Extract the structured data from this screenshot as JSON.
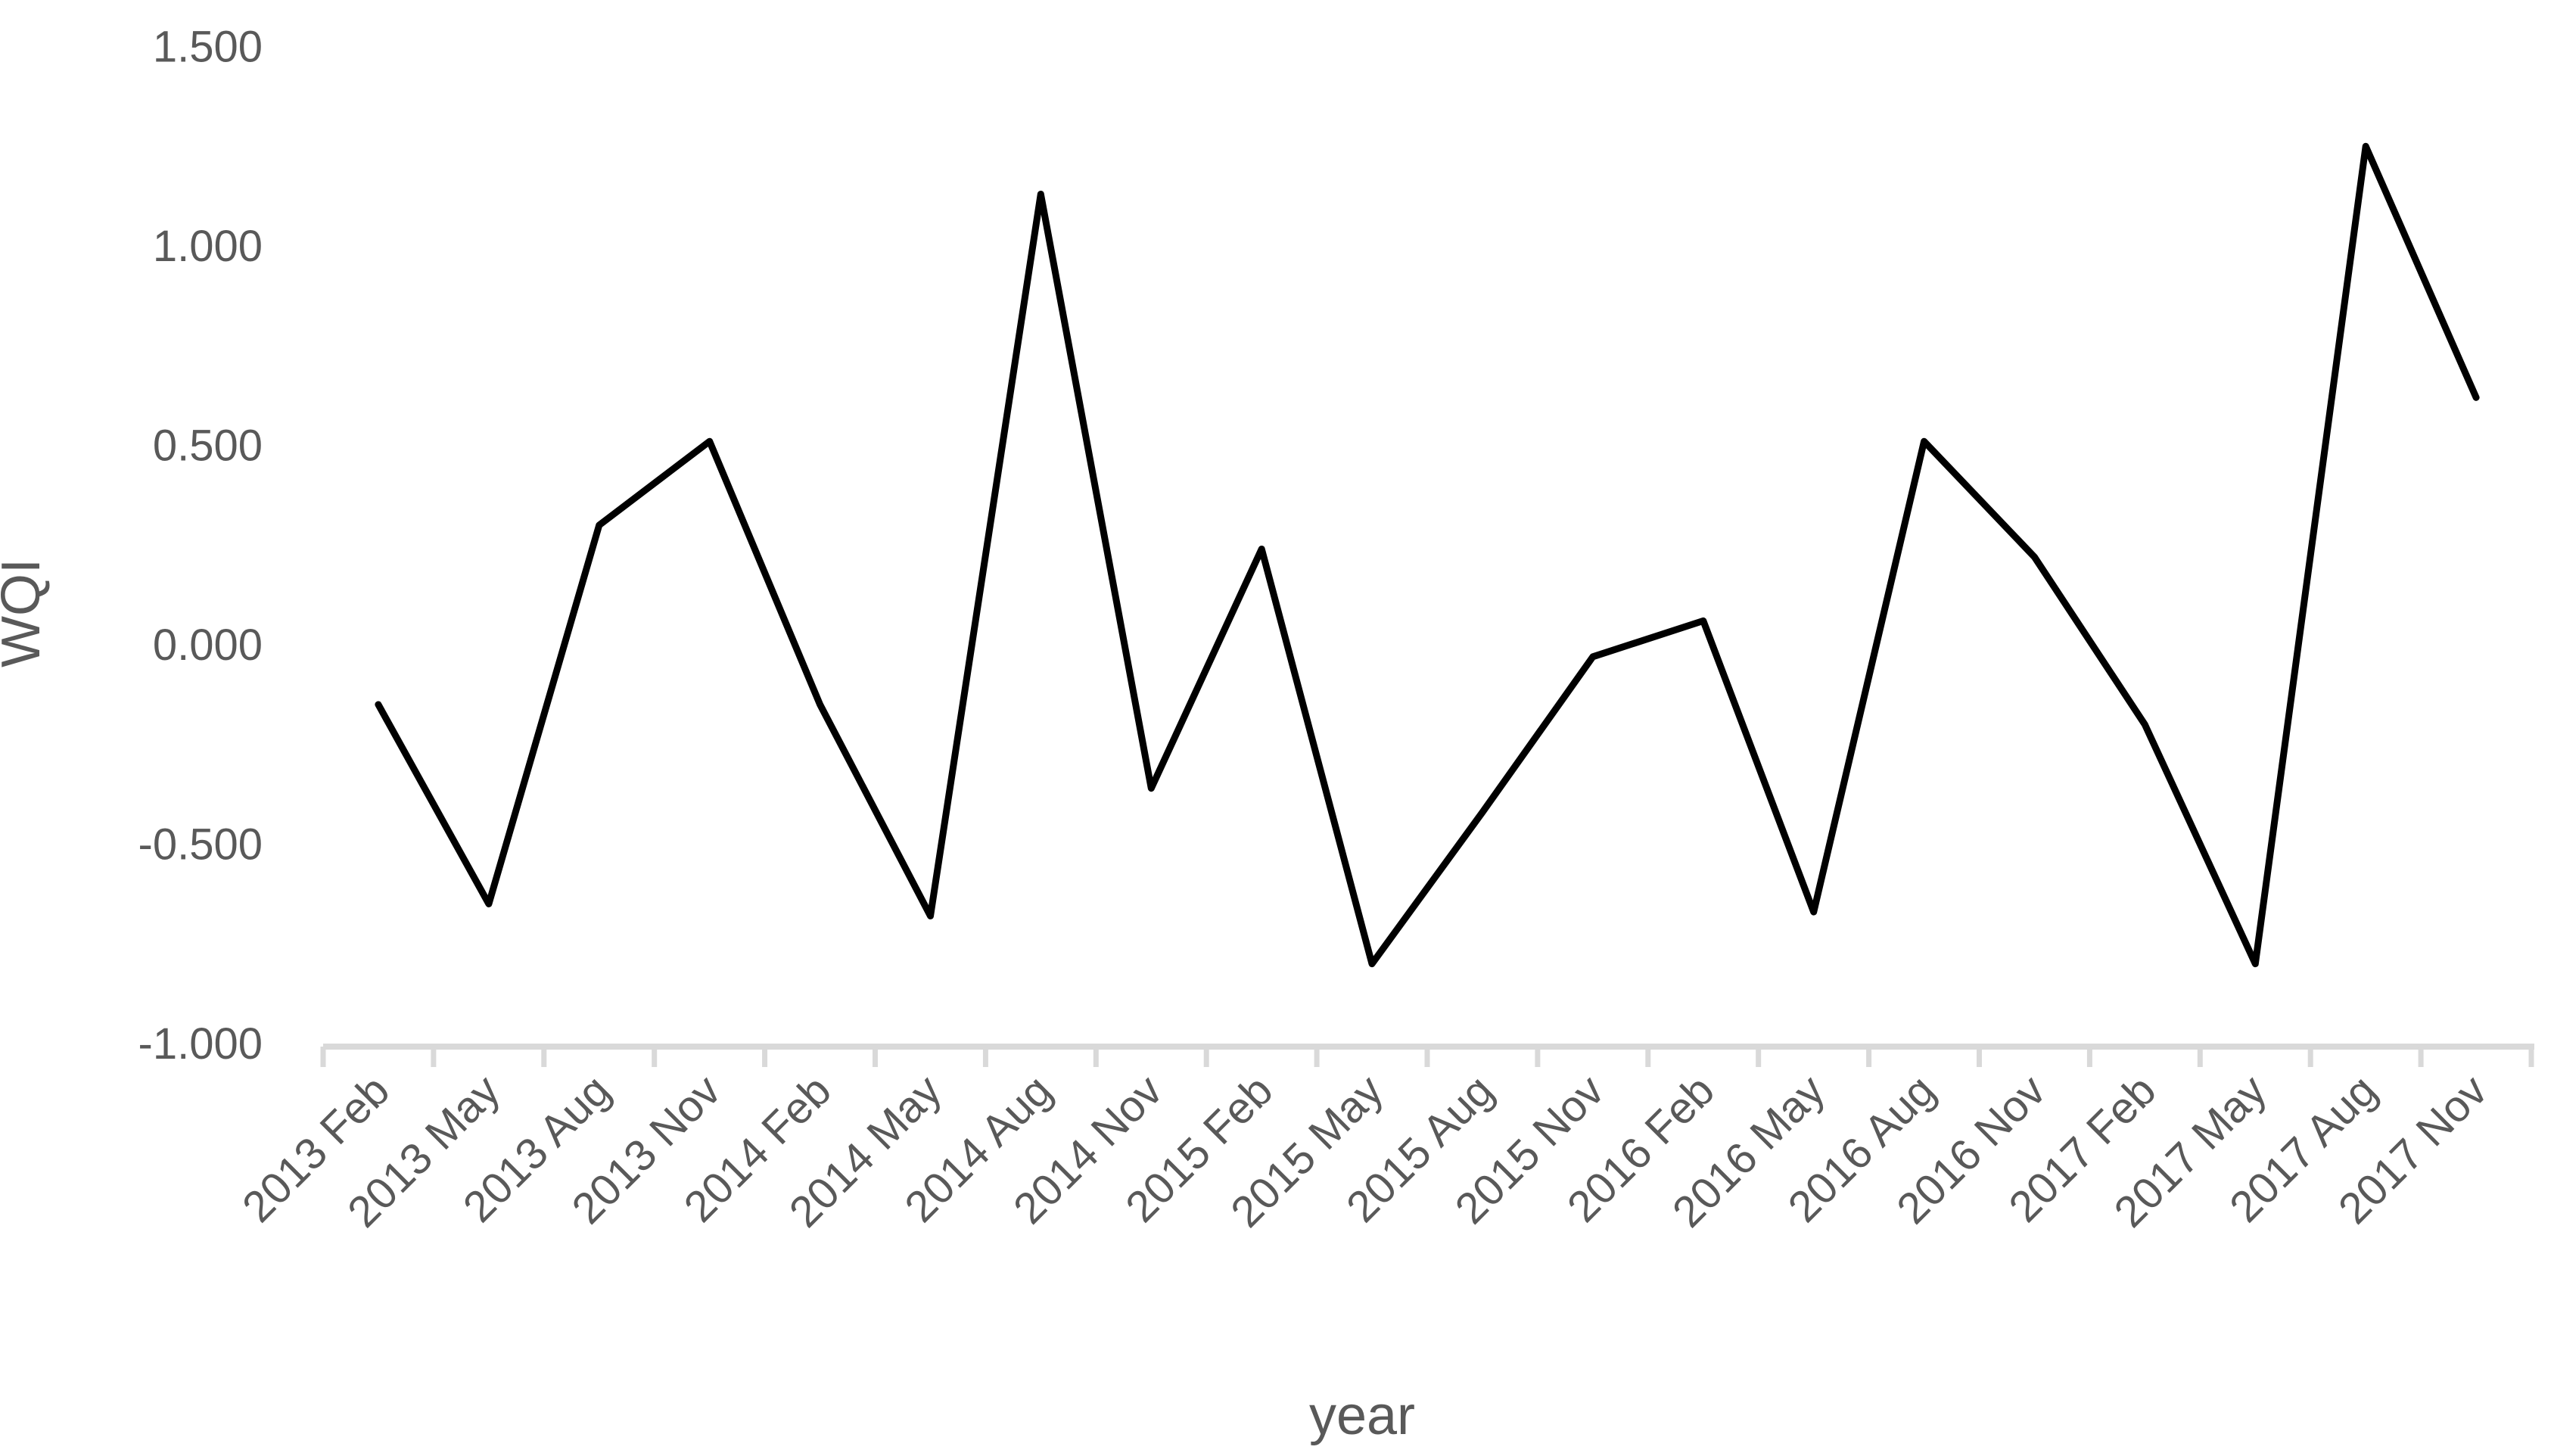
{
  "chart_data": {
    "type": "line",
    "title": "",
    "xlabel": "year",
    "ylabel": "WQI",
    "categories": [
      "2013 Feb",
      "2013 May",
      "2013 Aug",
      "2013 Nov",
      "2014 Feb",
      "2014 May",
      "2014 Aug",
      "2014 Nov",
      "2015 Feb",
      "2015 May",
      "2015 Aug",
      "2015 Nov",
      "2016 Feb",
      "2016 May",
      "2016 Aug",
      "2016 Nov",
      "2017 Feb",
      "2017 May",
      "2017 Aug",
      "2017 Nov"
    ],
    "series": [
      {
        "name": "WQI",
        "values": [
          -0.15,
          -0.65,
          0.3,
          0.51,
          -0.15,
          -0.68,
          1.13,
          -0.36,
          0.24,
          -0.8,
          -0.42,
          -0.03,
          0.06,
          -0.67,
          0.51,
          0.22,
          -0.2,
          -0.8,
          1.25,
          0.62
        ]
      }
    ],
    "ylim": [
      -1.0,
      1.5
    ],
    "ytick_labels": [
      "1.500",
      "1.000",
      "0.500",
      "0.000",
      "-0.500",
      "-1.000"
    ],
    "ytick_values": [
      1.5,
      1.0,
      0.5,
      0.0,
      -0.5,
      -1.0
    ],
    "x_label_rotation_deg": 45,
    "grid": false,
    "legend": "none",
    "colors": {
      "line": "#000000",
      "axis": "#D9D9D9",
      "tick": "#D9D9D9",
      "labels": "#595959",
      "background": "#FFFFFF"
    }
  }
}
